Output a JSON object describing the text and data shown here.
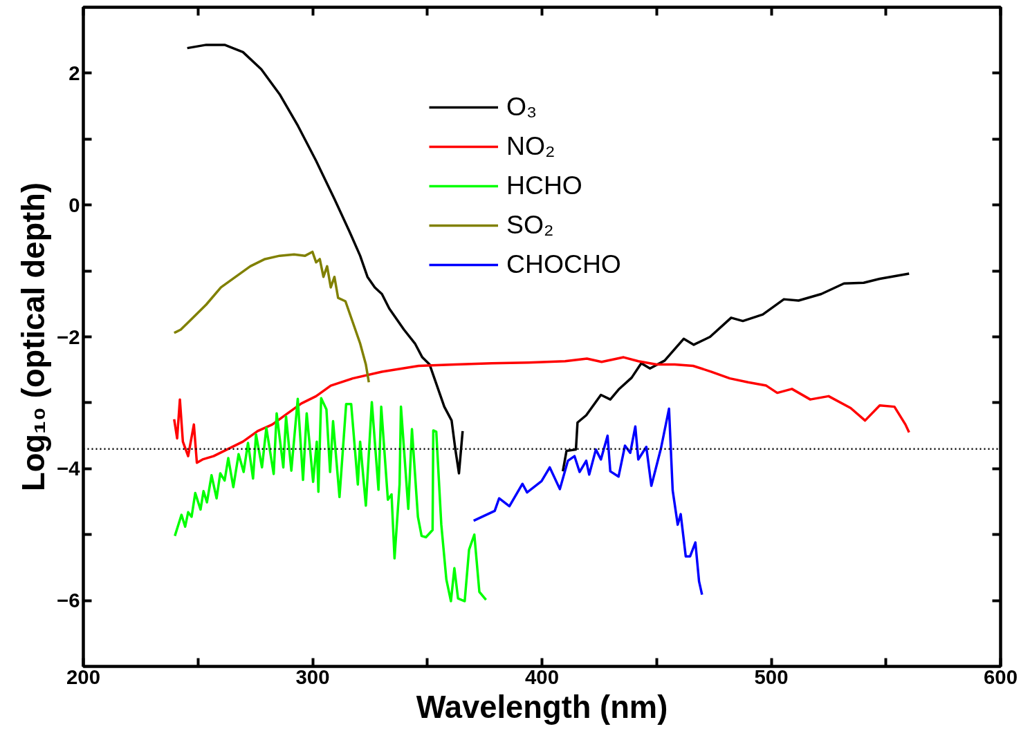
{
  "chart_data": {
    "type": "line",
    "xlabel": "Wavelength (nm)",
    "ylabel": "Log₁₀ (optical depth)",
    "xlim": [
      200,
      600
    ],
    "ylim": [
      -7,
      3
    ],
    "xticks": [
      200,
      {
        "value": 250,
        "label": null
      },
      300,
      {
        "value": 350,
        "label": null
      },
      400,
      {
        "value": 450,
        "label": null
      },
      500,
      {
        "value": 550,
        "label": null
      },
      600
    ],
    "yticks": [
      -6,
      {
        "value": -5,
        "label": null
      },
      -4,
      {
        "value": -3,
        "label": null
      },
      -2,
      {
        "value": -1,
        "label": null
      },
      0,
      {
        "value": 1,
        "label": null
      },
      2
    ],
    "grid": false,
    "legend": "top",
    "line_style": "solid",
    "marker": "none",
    "ref_lines": [
      {
        "axis": "y",
        "value": -3.7,
        "label": null,
        "color": "#000000",
        "line_style": "dotted"
      }
    ],
    "series": [
      {
        "name": "O₃",
        "color": "#000000",
        "x": [
          245.3,
          253.6,
          261.6,
          269.6,
          277.6,
          285.6,
          293.6,
          301.5,
          309.5,
          315.9,
          320.7,
          323.9,
          327.1,
          330.2,
          333.4,
          336.6,
          339.8,
          344.6,
          347.8,
          351.0,
          354.2,
          357.4,
          360.6,
          362.2,
          363.8,
          365.4,
          null,
          409.1,
          410.7,
          414.8,
          415.5,
          419.3,
          425.7,
          429.8,
          433.4,
          439.1,
          443.3,
          447.1,
          453.5,
          461.8,
          466.2,
          473.3,
          482.5,
          487.6,
          496.3,
          505.5,
          511.9,
          521.8,
          531.7,
          540.3,
          547.3,
          560.1
        ],
        "values": [
          2.38,
          2.43,
          2.43,
          2.32,
          2.06,
          1.68,
          1.2,
          0.67,
          0.09,
          -0.39,
          -0.77,
          -1.09,
          -1.25,
          -1.35,
          -1.57,
          -1.73,
          -1.89,
          -2.1,
          -2.31,
          -2.42,
          -2.74,
          -3.06,
          -3.27,
          -3.7,
          -4.07,
          -3.43,
          null,
          -4.04,
          -3.73,
          -3.71,
          -3.3,
          -3.19,
          -2.88,
          -2.95,
          -2.8,
          -2.62,
          -2.4,
          -2.48,
          -2.36,
          -2.03,
          -2.12,
          -2.0,
          -1.71,
          -1.76,
          -1.66,
          -1.43,
          -1.45,
          -1.35,
          -1.19,
          -1.18,
          -1.12,
          -1.04
        ]
      },
      {
        "name": "NO₂",
        "color": "#ff0000",
        "x": [
          239.6,
          240.9,
          242.1,
          243.4,
          245.7,
          248.2,
          249.5,
          252.0,
          256.8,
          263.2,
          269.6,
          276.0,
          282.4,
          288.7,
          295.1,
          301.5,
          307.9,
          317.5,
          330.2,
          346.2,
          362.2,
          378.1,
          394.1,
          410.1,
          419.6,
          426.0,
          435.6,
          442.0,
          450.0,
          457.9,
          465.9,
          473.9,
          481.9,
          489.9,
          497.8,
          502.6,
          509.0,
          517.0,
          525.0,
          534.6,
          540.9,
          547.3,
          553.7,
          558.5,
          560.1
        ],
        "values": [
          -3.25,
          -3.54,
          -2.95,
          -3.59,
          -3.81,
          -3.33,
          -3.91,
          -3.86,
          -3.81,
          -3.7,
          -3.59,
          -3.43,
          -3.33,
          -3.17,
          -3.01,
          -2.9,
          -2.74,
          -2.63,
          -2.53,
          -2.44,
          -2.42,
          -2.4,
          -2.39,
          -2.37,
          -2.33,
          -2.38,
          -2.31,
          -2.37,
          -2.42,
          -2.42,
          -2.44,
          -2.53,
          -2.63,
          -2.69,
          -2.74,
          -2.85,
          -2.79,
          -2.95,
          -2.9,
          -3.08,
          -3.27,
          -3.04,
          -3.06,
          -3.33,
          -3.45
        ]
      },
      {
        "name": "HCHO",
        "color": "#00ff00",
        "x": [
          239.9,
          242.8,
          244.4,
          245.7,
          247.2,
          248.8,
          251.1,
          252.4,
          253.9,
          255.9,
          258.1,
          259.7,
          261.6,
          263.2,
          265.4,
          267.7,
          269.9,
          271.8,
          274.0,
          275.3,
          277.9,
          279.8,
          283.0,
          284.3,
          287.2,
          288.4,
          290.7,
          293.5,
          295.8,
          297.4,
          300.2,
          301.8,
          302.5,
          303.7,
          306.0,
          307.6,
          308.9,
          311.7,
          314.6,
          316.8,
          319.7,
          320.7,
          323.2,
          325.8,
          328.7,
          329.9,
          332.8,
          334.4,
          335.7,
          337.9,
          338.5,
          341.7,
          343.3,
          345.9,
          347.5,
          349.4,
          352.3,
          352.6,
          353.9,
          356.1,
          358.3,
          360.3,
          361.8,
          363.4,
          366.3,
          368.2,
          370.5,
          372.7,
          375.6
        ],
        "values": [
          -5.02,
          -4.7,
          -4.88,
          -4.66,
          -4.73,
          -4.37,
          -4.62,
          -4.34,
          -4.51,
          -4.1,
          -4.45,
          -4.07,
          -4.18,
          -3.84,
          -4.28,
          -3.78,
          -4.05,
          -3.61,
          -4.15,
          -3.48,
          -3.98,
          -3.38,
          -4.08,
          -3.16,
          -3.98,
          -3.21,
          -4.03,
          -2.94,
          -4.17,
          -3.16,
          -4.2,
          -3.59,
          -4.35,
          -2.93,
          -3.1,
          -4.05,
          -3.28,
          -4.43,
          -3.02,
          -3.02,
          -4.24,
          -3.59,
          -4.56,
          -2.99,
          -4.32,
          -3.06,
          -4.47,
          -4.39,
          -5.36,
          -4.24,
          -3.06,
          -4.61,
          -3.4,
          -4.73,
          -5.02,
          -5.04,
          -4.93,
          -3.42,
          -3.44,
          -4.85,
          -5.68,
          -6.01,
          -5.51,
          -5.97,
          -6.01,
          -5.23,
          -5.0,
          -5.87,
          -5.99
        ]
      },
      {
        "name": "SO₂",
        "color": "#808000",
        "x": [
          239.6,
          242.5,
          247.2,
          253.6,
          260.0,
          266.4,
          272.8,
          279.2,
          285.6,
          291.9,
          296.7,
          299.9,
          301.5,
          303.1,
          304.7,
          306.3,
          307.9,
          309.5,
          311.1,
          314.3,
          317.5,
          320.7,
          323.2,
          324.5
        ],
        "values": [
          -1.94,
          -1.89,
          -1.73,
          -1.51,
          -1.25,
          -1.09,
          -0.93,
          -0.82,
          -0.77,
          -0.75,
          -0.77,
          -0.71,
          -0.87,
          -0.82,
          -1.09,
          -0.93,
          -1.25,
          -1.09,
          -1.41,
          -1.46,
          -1.78,
          -2.1,
          -2.42,
          -2.69
        ]
      },
      {
        "name": "CHOCHO",
        "color": "#0000ff",
        "x": [
          370.2,
          379.4,
          381.3,
          385.8,
          391.5,
          393.5,
          399.8,
          403.4,
          407.8,
          411.3,
          414.2,
          416.4,
          419.3,
          420.6,
          423.5,
          425.7,
          428.6,
          429.8,
          433.4,
          436.2,
          438.5,
          440.7,
          442.0,
          445.5,
          447.7,
          451.9,
          455.4,
          457.0,
          459.2,
          460.5,
          462.7,
          464.6,
          466.9,
          468.5,
          469.8
        ],
        "values": [
          -4.79,
          -4.64,
          -4.45,
          -4.57,
          -4.23,
          -4.36,
          -4.19,
          -3.98,
          -4.31,
          -3.88,
          -3.81,
          -4.05,
          -3.88,
          -4.09,
          -3.71,
          -3.86,
          -3.5,
          -4.04,
          -4.12,
          -3.65,
          -3.76,
          -3.36,
          -3.86,
          -3.67,
          -4.26,
          -3.69,
          -3.09,
          -4.33,
          -4.85,
          -4.69,
          -5.33,
          -5.33,
          -5.12,
          -5.71,
          -5.91
        ]
      }
    ]
  }
}
